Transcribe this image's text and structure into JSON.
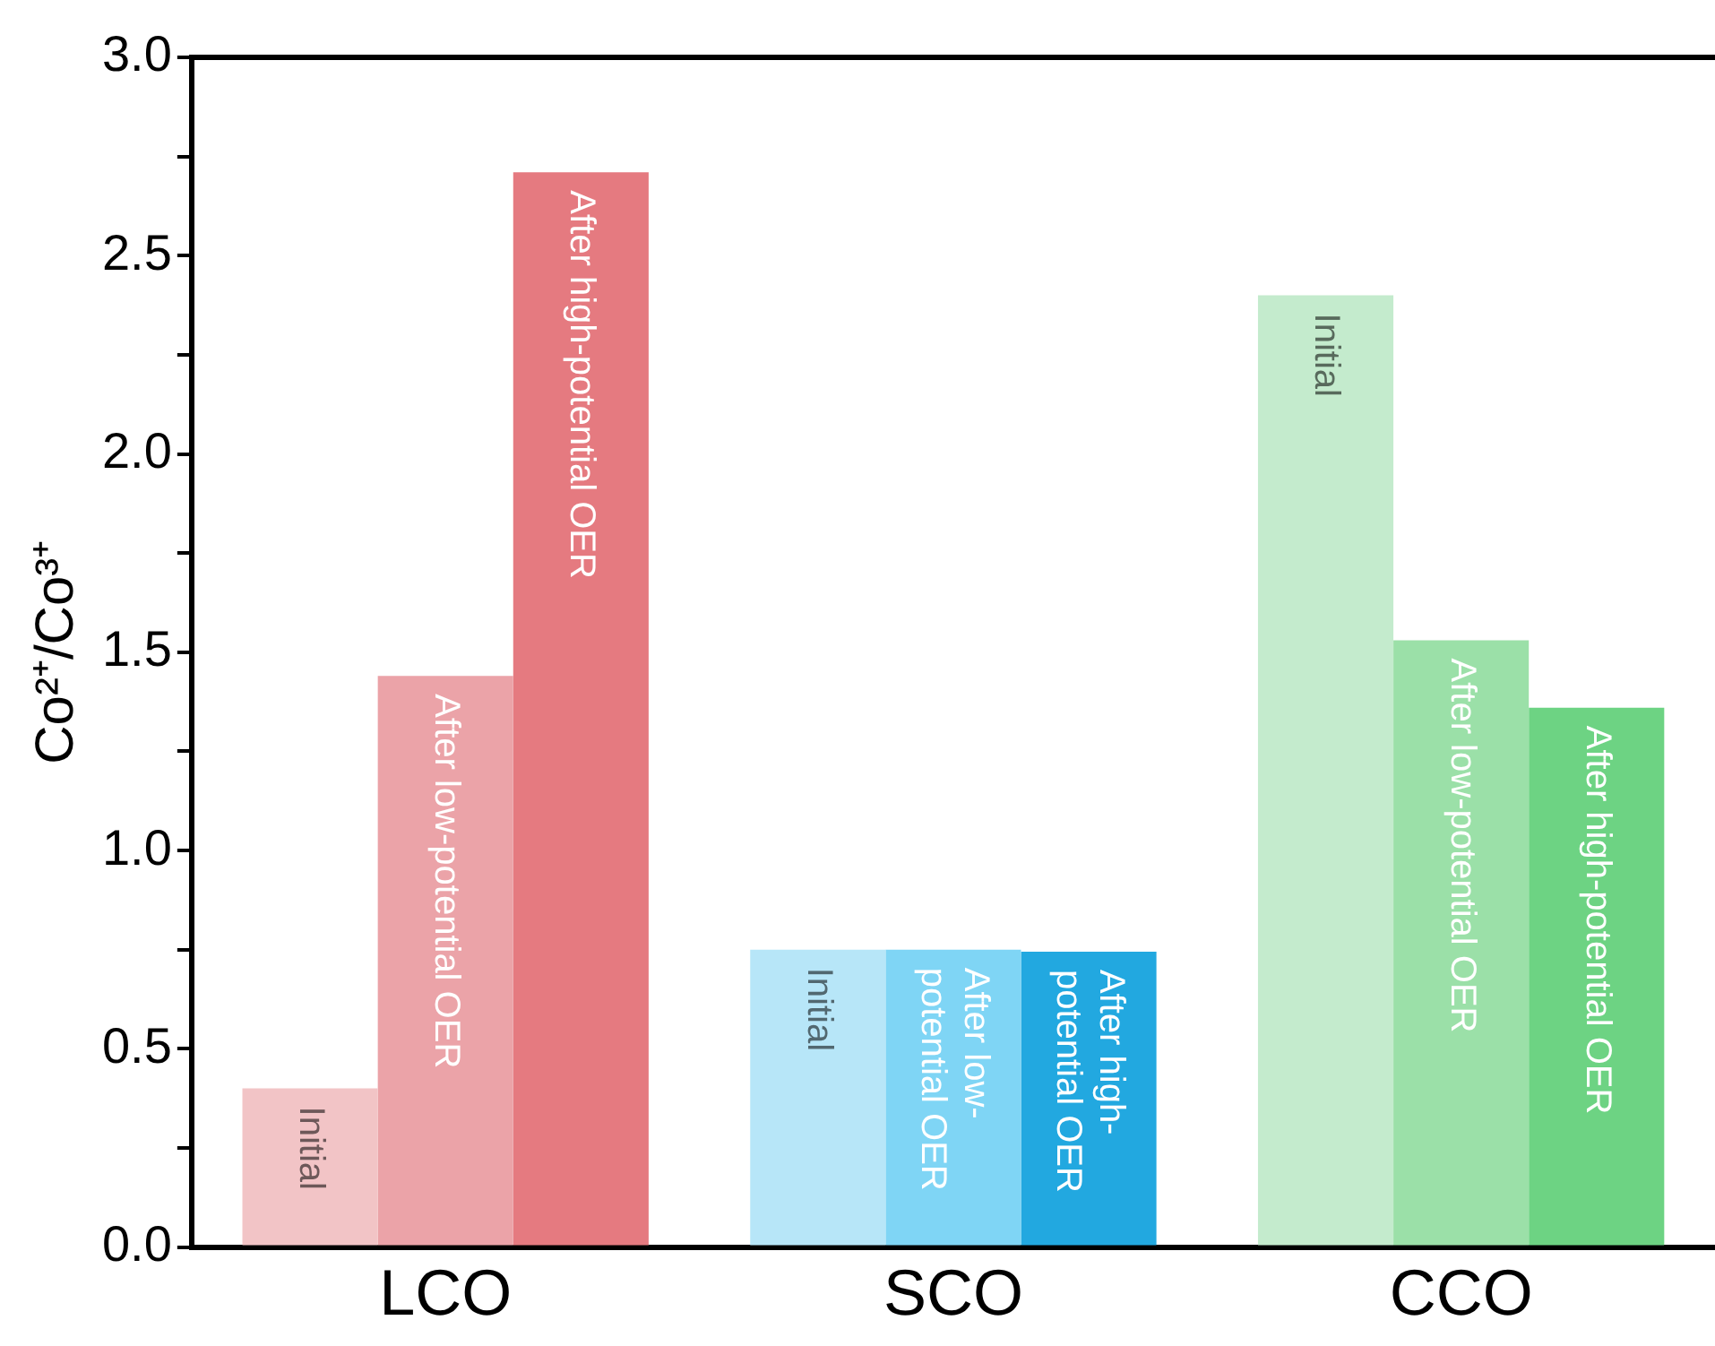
{
  "chart_data": {
    "type": "bar",
    "ylabel": "Co²⁺/Co³⁺",
    "categories": [
      "LCO",
      "SCO",
      "CCO"
    ],
    "series": [
      {
        "name": "Initial",
        "colors": [
          "#f2c4c6",
          "#b7e6f8",
          "#c4ebcd"
        ],
        "values": [
          0.4,
          0.75,
          2.4
        ]
      },
      {
        "name": "After low-potential OER",
        "colors": [
          "#eba3a8",
          "#7fd5f5",
          "#9be0a8"
        ],
        "values": [
          1.44,
          0.75,
          1.53
        ]
      },
      {
        "name": "After high-potential OER",
        "colors": [
          "#e57a80",
          "#22a8e0",
          "#6dd383"
        ],
        "values": [
          2.71,
          0.745,
          1.36
        ]
      }
    ],
    "ylim": [
      0,
      3
    ],
    "yticks": [
      {
        "value": 0,
        "label": "0.0"
      },
      {
        "value": 0.25,
        "label": null
      },
      {
        "value": 0.5,
        "label": "0.5"
      },
      {
        "value": 0.75,
        "label": null
      },
      {
        "value": 1,
        "label": "1.0"
      },
      {
        "value": 1.25,
        "label": null
      },
      {
        "value": 1.5,
        "label": "1.5"
      },
      {
        "value": 1.75,
        "label": null
      },
      {
        "value": 2,
        "label": "2.0"
      },
      {
        "value": 2.25,
        "label": null
      },
      {
        "value": 2.5,
        "label": "2.5"
      },
      {
        "value": 2.75,
        "label": null
      },
      {
        "value": 3,
        "label": "3.0"
      }
    ],
    "grid": false,
    "legend": false
  }
}
